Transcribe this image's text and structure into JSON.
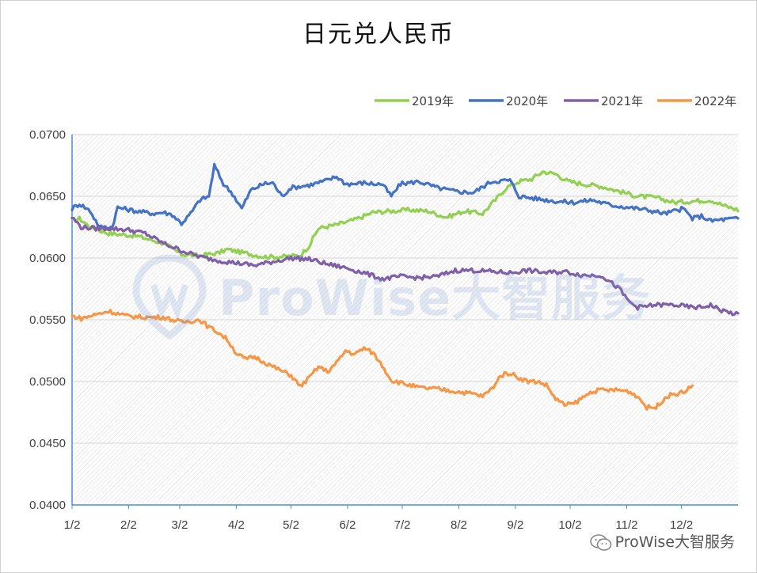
{
  "chart_data": {
    "type": "line",
    "title": "日元兑人民币",
    "xlabel": "",
    "ylabel": "",
    "x_ticks": [
      "1/2",
      "2/2",
      "3/2",
      "4/2",
      "5/2",
      "6/2",
      "7/2",
      "8/2",
      "9/2",
      "10/2",
      "11/2",
      "12/2"
    ],
    "y_ticks": [
      "0.0700",
      "0.0650",
      "0.0600",
      "0.0550",
      "0.0500",
      "0.0450",
      "0.0400"
    ],
    "ylim": [
      0.04,
      0.07
    ],
    "xlim_days": [
      0,
      365
    ],
    "grid": true,
    "legend_position": "top-right",
    "x_note": "x values are day of year (1/2 = 0)",
    "series": [
      {
        "name": "2019年",
        "color": "#92D050",
        "points": [
          [
            0,
            0.063
          ],
          [
            4,
            0.0632
          ],
          [
            10,
            0.0625
          ],
          [
            20,
            0.062
          ],
          [
            35,
            0.0618
          ],
          [
            50,
            0.0612
          ],
          [
            60,
            0.0603
          ],
          [
            70,
            0.0602
          ],
          [
            80,
            0.0604
          ],
          [
            85,
            0.0607
          ],
          [
            95,
            0.0604
          ],
          [
            105,
            0.0601
          ],
          [
            115,
            0.0601
          ],
          [
            125,
            0.0602
          ],
          [
            130,
            0.061
          ],
          [
            135,
            0.0624
          ],
          [
            145,
            0.0627
          ],
          [
            155,
            0.0631
          ],
          [
            165,
            0.0637
          ],
          [
            175,
            0.0638
          ],
          [
            185,
            0.0639
          ],
          [
            195,
            0.0638
          ],
          [
            205,
            0.0633
          ],
          [
            215,
            0.0638
          ],
          [
            225,
            0.0636
          ],
          [
            232,
            0.0647
          ],
          [
            238,
            0.0657
          ],
          [
            245,
            0.0662
          ],
          [
            252,
            0.0664
          ],
          [
            258,
            0.067
          ],
          [
            265,
            0.0668
          ],
          [
            272,
            0.0662
          ],
          [
            280,
            0.066
          ],
          [
            290,
            0.0658
          ],
          [
            300,
            0.0654
          ],
          [
            310,
            0.065
          ],
          [
            320,
            0.0649
          ],
          [
            330,
            0.0645
          ],
          [
            340,
            0.0646
          ],
          [
            350,
            0.0647
          ],
          [
            358,
            0.0642
          ],
          [
            365,
            0.0639
          ]
        ]
      },
      {
        "name": "2020年",
        "color": "#4472C4",
        "points": [
          [
            0,
            0.064
          ],
          [
            4,
            0.0644
          ],
          [
            10,
            0.0638
          ],
          [
            15,
            0.0625
          ],
          [
            22,
            0.0625
          ],
          [
            25,
            0.0641
          ],
          [
            35,
            0.0638
          ],
          [
            45,
            0.0636
          ],
          [
            50,
            0.0637
          ],
          [
            55,
            0.0635
          ],
          [
            60,
            0.0628
          ],
          [
            65,
            0.0636
          ],
          [
            70,
            0.0647
          ],
          [
            75,
            0.065
          ],
          [
            78,
            0.0675
          ],
          [
            83,
            0.066
          ],
          [
            88,
            0.0652
          ],
          [
            93,
            0.064
          ],
          [
            98,
            0.0655
          ],
          [
            105,
            0.066
          ],
          [
            110,
            0.0661
          ],
          [
            115,
            0.065
          ],
          [
            120,
            0.0657
          ],
          [
            130,
            0.0659
          ],
          [
            140,
            0.0663
          ],
          [
            145,
            0.0666
          ],
          [
            150,
            0.066
          ],
          [
            155,
            0.066
          ],
          [
            160,
            0.0661
          ],
          [
            165,
            0.066
          ],
          [
            170,
            0.066
          ],
          [
            175,
            0.065
          ],
          [
            180,
            0.066
          ],
          [
            190,
            0.0662
          ],
          [
            200,
            0.0657
          ],
          [
            210,
            0.0654
          ],
          [
            220,
            0.0653
          ],
          [
            230,
            0.0662
          ],
          [
            240,
            0.0663
          ],
          [
            245,
            0.065
          ],
          [
            255,
            0.0648
          ],
          [
            265,
            0.0646
          ],
          [
            275,
            0.0645
          ],
          [
            285,
            0.0647
          ],
          [
            295,
            0.0643
          ],
          [
            305,
            0.0641
          ],
          [
            315,
            0.0639
          ],
          [
            325,
            0.0636
          ],
          [
            335,
            0.064
          ],
          [
            340,
            0.0632
          ],
          [
            345,
            0.0634
          ],
          [
            350,
            0.063
          ],
          [
            355,
            0.0631
          ],
          [
            365,
            0.0632
          ]
        ]
      },
      {
        "name": "2021年",
        "color": "#7F5FA8",
        "points": [
          [
            0,
            0.0633
          ],
          [
            5,
            0.0625
          ],
          [
            12,
            0.0624
          ],
          [
            20,
            0.0624
          ],
          [
            30,
            0.0623
          ],
          [
            40,
            0.062
          ],
          [
            50,
            0.0612
          ],
          [
            60,
            0.0606
          ],
          [
            70,
            0.0601
          ],
          [
            80,
            0.0598
          ],
          [
            90,
            0.0596
          ],
          [
            100,
            0.0594
          ],
          [
            110,
            0.0597
          ],
          [
            120,
            0.06
          ],
          [
            130,
            0.0599
          ],
          [
            140,
            0.0595
          ],
          [
            150,
            0.0592
          ],
          [
            160,
            0.0588
          ],
          [
            170,
            0.0583
          ],
          [
            180,
            0.0585
          ],
          [
            190,
            0.0584
          ],
          [
            200,
            0.0585
          ],
          [
            210,
            0.059
          ],
          [
            220,
            0.059
          ],
          [
            230,
            0.0589
          ],
          [
            240,
            0.0588
          ],
          [
            250,
            0.059
          ],
          [
            260,
            0.0588
          ],
          [
            270,
            0.0589
          ],
          [
            280,
            0.0586
          ],
          [
            290,
            0.0586
          ],
          [
            300,
            0.0575
          ],
          [
            305,
            0.0565
          ],
          [
            310,
            0.056
          ],
          [
            320,
            0.0562
          ],
          [
            330,
            0.0562
          ],
          [
            340,
            0.056
          ],
          [
            345,
            0.056
          ],
          [
            350,
            0.0562
          ],
          [
            355,
            0.0558
          ],
          [
            360,
            0.0556
          ],
          [
            365,
            0.0554
          ]
        ]
      },
      {
        "name": "2022年",
        "color": "#F79646",
        "points": [
          [
            0,
            0.0553
          ],
          [
            5,
            0.0551
          ],
          [
            10,
            0.0553
          ],
          [
            15,
            0.0555
          ],
          [
            20,
            0.0557
          ],
          [
            30,
            0.0553
          ],
          [
            40,
            0.0552
          ],
          [
            50,
            0.0552
          ],
          [
            55,
            0.055
          ],
          [
            60,
            0.0548
          ],
          [
            70,
            0.055
          ],
          [
            75,
            0.0544
          ],
          [
            80,
            0.054
          ],
          [
            85,
            0.0534
          ],
          [
            90,
            0.0523
          ],
          [
            95,
            0.0518
          ],
          [
            100,
            0.052
          ],
          [
            110,
            0.0512
          ],
          [
            120,
            0.0505
          ],
          [
            125,
            0.0496
          ],
          [
            130,
            0.0503
          ],
          [
            135,
            0.0512
          ],
          [
            140,
            0.0508
          ],
          [
            145,
            0.0515
          ],
          [
            150,
            0.0525
          ],
          [
            155,
            0.0522
          ],
          [
            160,
            0.0527
          ],
          [
            165,
            0.0523
          ],
          [
            170,
            0.0513
          ],
          [
            175,
            0.0501
          ],
          [
            180,
            0.0499
          ],
          [
            190,
            0.0495
          ],
          [
            200,
            0.0494
          ],
          [
            210,
            0.0492
          ],
          [
            220,
            0.049
          ],
          [
            225,
            0.0488
          ],
          [
            230,
            0.0494
          ],
          [
            235,
            0.0505
          ],
          [
            240,
            0.0507
          ],
          [
            245,
            0.0503
          ],
          [
            250,
            0.05
          ],
          [
            255,
            0.05
          ],
          [
            260,
            0.0497
          ],
          [
            265,
            0.0486
          ],
          [
            270,
            0.0481
          ],
          [
            275,
            0.0482
          ],
          [
            280,
            0.0487
          ],
          [
            285,
            0.0492
          ],
          [
            290,
            0.0493
          ],
          [
            300,
            0.0493
          ],
          [
            305,
            0.0492
          ],
          [
            310,
            0.0488
          ],
          [
            315,
            0.0479
          ],
          [
            320,
            0.0479
          ],
          [
            325,
            0.0487
          ],
          [
            330,
            0.049
          ],
          [
            335,
            0.0491
          ],
          [
            340,
            0.0497
          ]
        ]
      }
    ]
  },
  "watermark": {
    "text": "ProWise大智服务"
  },
  "footer": {
    "brand": "ProWise大智服务"
  }
}
